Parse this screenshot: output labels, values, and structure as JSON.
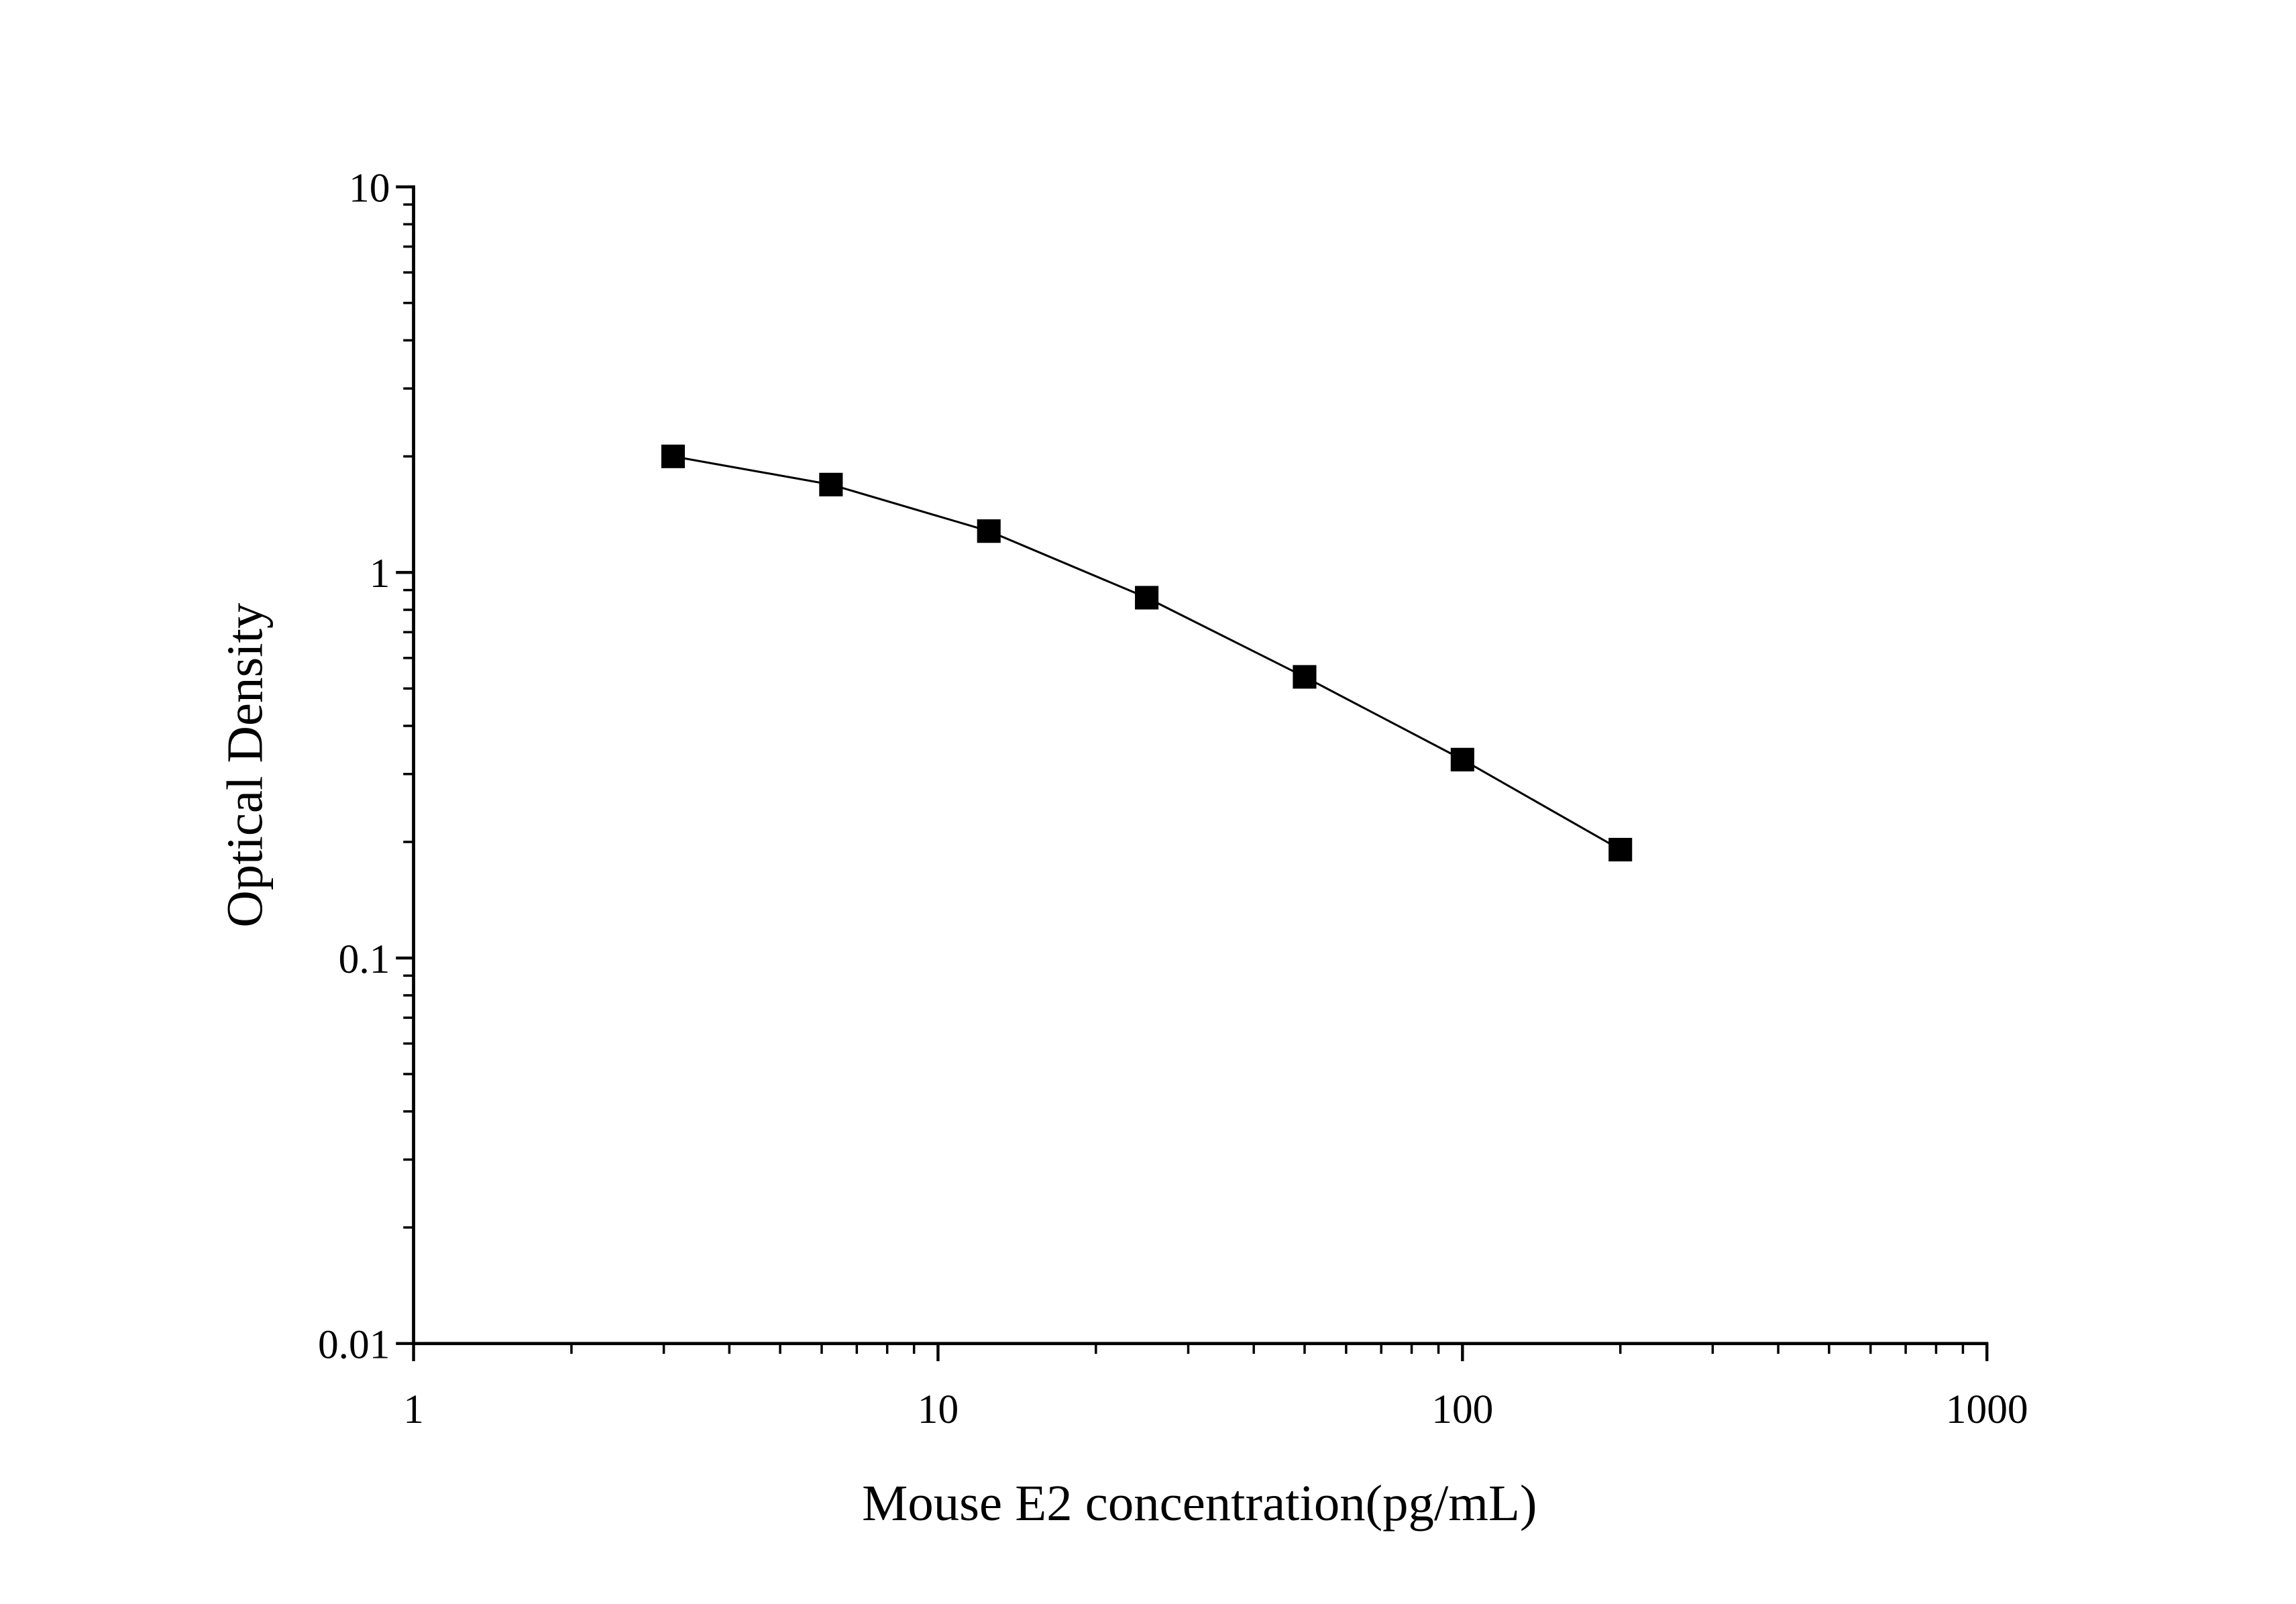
{
  "chart_data": {
    "type": "line",
    "title": "",
    "xlabel": "Mouse E2 concentration(pg/mL)",
    "ylabel": "Optical Density",
    "x_scale": "log",
    "y_scale": "log",
    "xlim": [
      1,
      1000
    ],
    "ylim": [
      0.01,
      10
    ],
    "x_ticks": [
      "1",
      "10",
      "100",
      "1000"
    ],
    "y_ticks": [
      "0.01",
      "0.1",
      "1",
      "10"
    ],
    "grid": false,
    "marker": "square",
    "color": "#000000",
    "series": [
      {
        "x": [
          3.125,
          6.25,
          12.5,
          25,
          50,
          100,
          200
        ],
        "y": [
          2.0,
          1.69,
          1.28,
          0.86,
          0.536,
          0.327,
          0.191
        ]
      }
    ]
  }
}
